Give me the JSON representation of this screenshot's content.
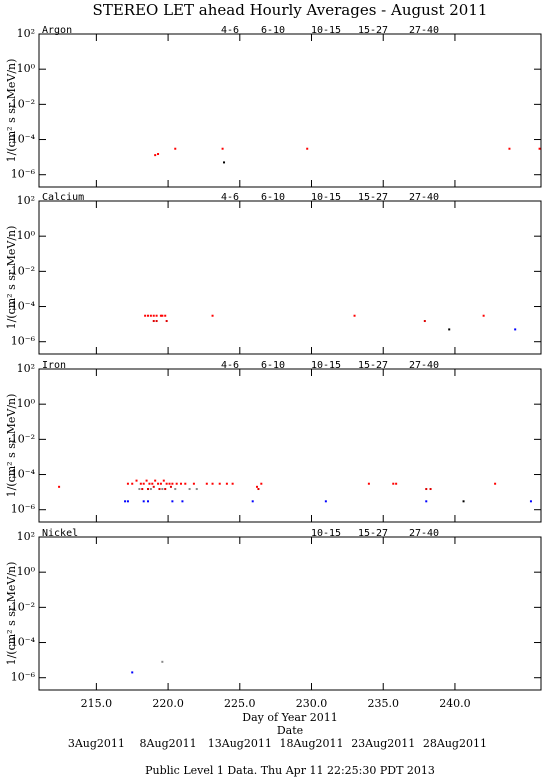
{
  "title": "STEREO LET ahead Hourly Averages - August 2011",
  "x_axis": {
    "label": "Day of Year 2011",
    "xlim": [
      211,
      246
    ],
    "xticks": [
      {
        "value": 215,
        "label": "215.0"
      },
      {
        "value": 220,
        "label": "220.0"
      },
      {
        "value": 225,
        "label": "225.0"
      },
      {
        "value": 230,
        "label": "230.0"
      },
      {
        "value": 235,
        "label": "235.0"
      },
      {
        "value": 240,
        "label": "240.0"
      }
    ],
    "date_label": "Date",
    "date_ticks": [
      {
        "value": 215,
        "label": "3Aug2011"
      },
      {
        "value": 220,
        "label": "8Aug2011"
      },
      {
        "value": 225,
        "label": "13Aug2011"
      },
      {
        "value": 230,
        "label": "18Aug2011"
      },
      {
        "value": 235,
        "label": "23Aug2011"
      },
      {
        "value": 240,
        "label": "28Aug2011"
      }
    ]
  },
  "footer": "Public Level 1 Data. Thu Apr 11 22:25:30 PDT 2013",
  "chart_data": [
    {
      "type": "scatter",
      "title": "Argon",
      "ylabel": "1/(cm² s sr MeV/n)",
      "log_y": true,
      "ylim": [
        2e-07,
        100
      ],
      "yticks": [
        {
          "value": 100,
          "label": "10²"
        },
        {
          "value": 1,
          "label": "10⁰"
        },
        {
          "value": 0.01,
          "label": "10⁻²"
        },
        {
          "value": 0.0001,
          "label": "10⁻⁴"
        },
        {
          "value": 1e-06,
          "label": "10⁻⁶"
        }
      ],
      "series": [
        {
          "name": "4-6",
          "color": "#ff0000",
          "x": [
            219.1,
            219.3,
            220.5,
            223.8,
            229.7,
            243.8,
            245.9
          ],
          "values": [
            1.3e-05,
            1.5e-05,
            3e-05,
            3e-05,
            3e-05,
            3e-05,
            3e-05
          ]
        },
        {
          "name": "6-10",
          "color": "#dd0000",
          "x": [],
          "values": []
        },
        {
          "name": "10-15",
          "color": "#888888",
          "x": [],
          "values": []
        },
        {
          "name": "15-27",
          "color": "#0000ff",
          "x": [],
          "values": []
        },
        {
          "name": "27-40",
          "color": "#000000",
          "x": [
            223.9
          ],
          "values": [
            5e-06
          ]
        }
      ]
    },
    {
      "type": "scatter",
      "title": "Calcium",
      "ylabel": "1/(cm² s sr MeV/n)",
      "log_y": true,
      "ylim": [
        2e-07,
        100
      ],
      "yticks": [
        {
          "value": 100,
          "label": "10²"
        },
        {
          "value": 1,
          "label": "10⁰"
        },
        {
          "value": 0.01,
          "label": "10⁻²"
        },
        {
          "value": 0.0001,
          "label": "10⁻⁴"
        },
        {
          "value": 1e-06,
          "label": "10⁻⁶"
        }
      ],
      "series": [
        {
          "name": "4-6",
          "color": "#ff0000",
          "x": [
            218.4,
            218.6,
            218.8,
            219.0,
            219.2,
            219.5,
            219.6,
            219.8,
            223.1,
            233.0,
            242.0
          ],
          "values": [
            3e-05,
            3e-05,
            3e-05,
            3e-05,
            3e-05,
            3e-05,
            3e-05,
            3e-05,
            3e-05,
            3e-05,
            3e-05
          ]
        },
        {
          "name": "6-10",
          "color": "#dd0000",
          "x": [
            219.0,
            219.2,
            219.9,
            237.9
          ],
          "values": [
            1.5e-05,
            1.5e-05,
            1.5e-05,
            1.5e-05
          ]
        },
        {
          "name": "10-15",
          "color": "#888888",
          "x": [],
          "values": []
        },
        {
          "name": "15-27",
          "color": "#0000ff",
          "x": [
            244.2
          ],
          "values": [
            5e-06
          ]
        },
        {
          "name": "27-40",
          "color": "#000000",
          "x": [
            239.6
          ],
          "values": [
            5e-06
          ]
        }
      ]
    },
    {
      "type": "scatter",
      "title": "Iron",
      "ylabel": "1/(cm² s sr MeV/n)",
      "log_y": true,
      "ylim": [
        2e-07,
        100
      ],
      "yticks": [
        {
          "value": 100,
          "label": "10²"
        },
        {
          "value": 1,
          "label": "10⁰"
        },
        {
          "value": 0.01,
          "label": "10⁻²"
        },
        {
          "value": 0.0001,
          "label": "10⁻⁴"
        },
        {
          "value": 1e-06,
          "label": "10⁻⁶"
        }
      ],
      "series": [
        {
          "name": "4-6",
          "color": "#ff0000",
          "x": [
            212.4,
            217.2,
            217.5,
            217.8,
            218.1,
            218.3,
            218.5,
            218.7,
            218.9,
            219.1,
            219.3,
            219.5,
            219.7,
            219.9,
            220.1,
            220.3,
            220.6,
            220.9,
            221.2,
            221.8,
            222.7,
            223.1,
            223.6,
            224.1,
            224.5,
            226.2,
            226.5,
            234.0,
            235.7,
            235.9,
            242.8
          ],
          "values": [
            2e-05,
            3e-05,
            3e-05,
            4.5e-05,
            3e-05,
            3e-05,
            4.5e-05,
            3e-05,
            3e-05,
            4.5e-05,
            3e-05,
            3e-05,
            4.5e-05,
            3e-05,
            3e-05,
            3e-05,
            3e-05,
            3e-05,
            3e-05,
            3e-05,
            3e-05,
            3e-05,
            3e-05,
            3e-05,
            3e-05,
            2e-05,
            3e-05,
            3e-05,
            3e-05,
            3e-05,
            3e-05
          ]
        },
        {
          "name": "6-10",
          "color": "#dd0000",
          "x": [
            218.2,
            218.6,
            219.0,
            219.4,
            219.8,
            220.2,
            226.3,
            238.0,
            238.3
          ],
          "values": [
            1.5e-05,
            1.5e-05,
            2e-05,
            1.5e-05,
            1.5e-05,
            2e-05,
            1.5e-05,
            1.5e-05,
            1.5e-05
          ]
        },
        {
          "name": "10-15",
          "color": "#888888",
          "x": [
            218.0,
            218.8,
            219.6,
            220.5,
            221.5,
            222.0
          ],
          "values": [
            1.5e-05,
            1.5e-05,
            1.5e-05,
            1.5e-05,
            1.5e-05,
            1.5e-05
          ]
        },
        {
          "name": "15-27",
          "color": "#0000ff",
          "x": [
            217.0,
            217.2,
            218.3,
            218.6,
            220.3,
            221.0,
            225.9,
            231.0,
            238.0,
            245.3
          ],
          "values": [
            3e-06,
            3e-06,
            3e-06,
            3e-06,
            3e-06,
            3e-06,
            3e-06,
            3e-06,
            3e-06,
            3e-06
          ]
        },
        {
          "name": "27-40",
          "color": "#000000",
          "x": [
            240.6
          ],
          "values": [
            3e-06
          ]
        }
      ]
    },
    {
      "type": "scatter",
      "title": "Nickel",
      "ylabel": "1/(cm² s sr MeV/n)",
      "log_y": true,
      "ylim": [
        2e-07,
        100
      ],
      "yticks": [
        {
          "value": 100,
          "label": "10²"
        },
        {
          "value": 1,
          "label": "10⁰"
        },
        {
          "value": 0.01,
          "label": "10⁻²"
        },
        {
          "value": 0.0001,
          "label": "10⁻⁴"
        },
        {
          "value": 1e-06,
          "label": "10⁻⁶"
        }
      ],
      "series": [
        {
          "name": "10-15",
          "color": "#888888",
          "x": [
            219.6
          ],
          "values": [
            8e-06
          ]
        },
        {
          "name": "15-27",
          "color": "#0000ff",
          "x": [
            217.5
          ],
          "values": [
            2e-06
          ]
        },
        {
          "name": "27-40",
          "color": "#000000",
          "x": [],
          "values": []
        }
      ]
    }
  ]
}
